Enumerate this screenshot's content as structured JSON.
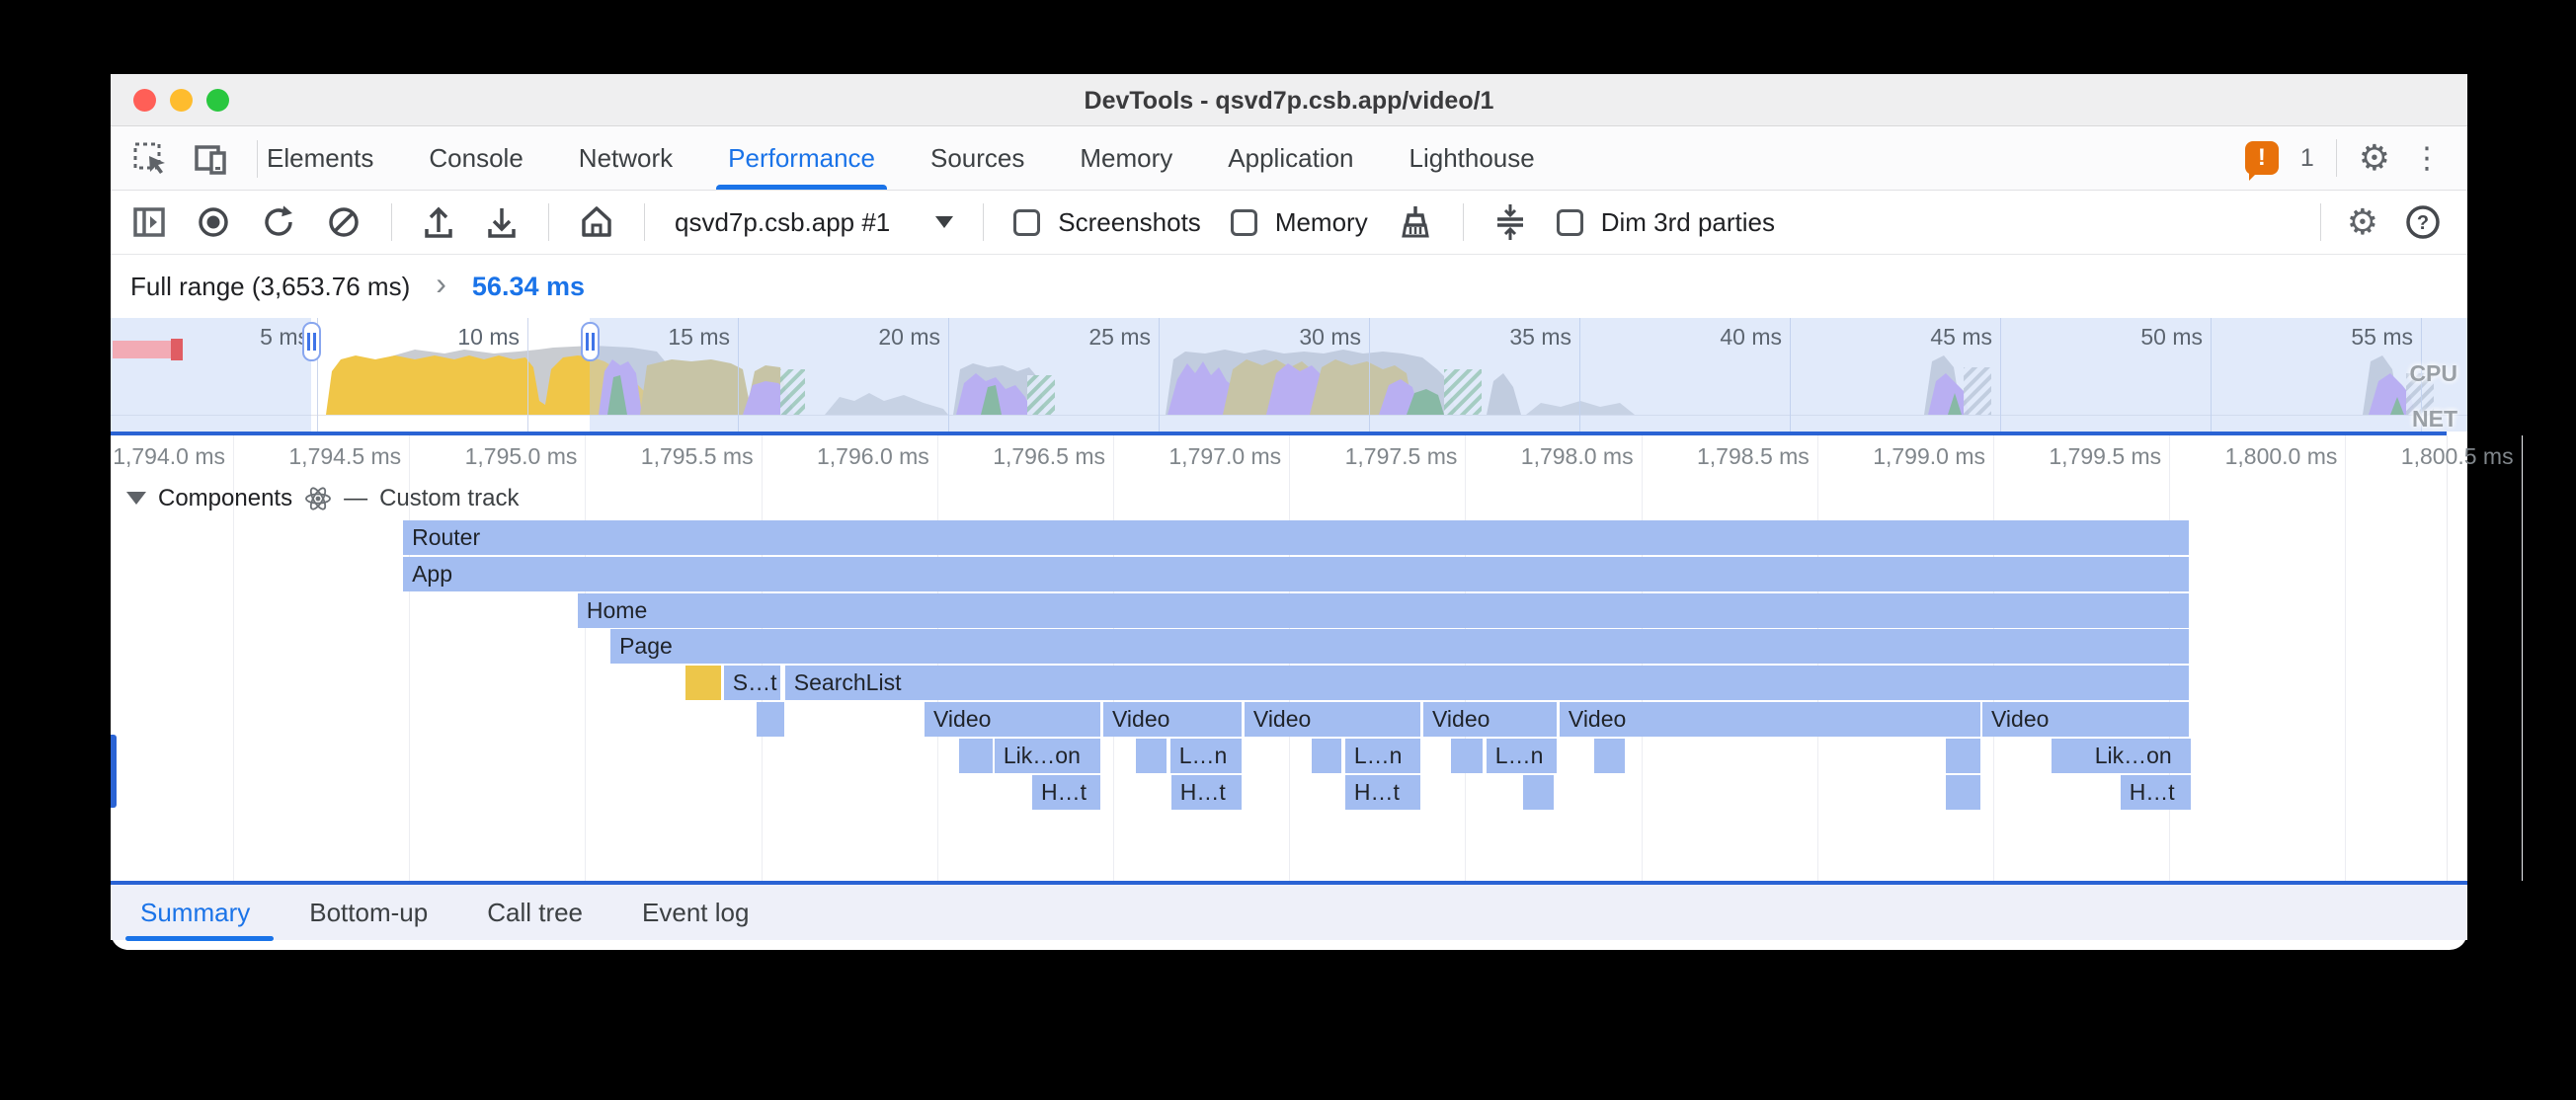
{
  "window": {
    "title": "DevTools - qsvd7p.csb.app/video/1"
  },
  "main_tabs": {
    "items": [
      "Elements",
      "Console",
      "Network",
      "Performance",
      "Sources",
      "Memory",
      "Application",
      "Lighthouse"
    ],
    "selected": "Performance",
    "issue_count": "1"
  },
  "toolbar": {
    "target_selector": "qsvd7p.csb.app #1",
    "screenshots_label": "Screenshots",
    "memory_label": "Memory",
    "dim_label": "Dim 3rd parties"
  },
  "breadcrumb": {
    "full_range": "Full range (3,653.76 ms)",
    "chevron": "›",
    "selection": "56.34 ms"
  },
  "minimap": {
    "ticks": [
      {
        "ms": 5,
        "label": "5 ms"
      },
      {
        "ms": 10,
        "label": "10 ms"
      },
      {
        "ms": 15,
        "label": "15 ms"
      },
      {
        "ms": 20,
        "label": "20 ms"
      },
      {
        "ms": 25,
        "label": "25 ms"
      },
      {
        "ms": 30,
        "label": "30 ms"
      },
      {
        "ms": 35,
        "label": "35 ms"
      },
      {
        "ms": 40,
        "label": "40 ms"
      },
      {
        "ms": 45,
        "label": "45 ms"
      },
      {
        "ms": 50,
        "label": "50 ms"
      },
      {
        "ms": 55,
        "label": "55 ms"
      }
    ],
    "cpu_label": "CPU",
    "net_label": "NET"
  },
  "detail_ruler": {
    "labels": [
      {
        "ms": 1794.0,
        "label": "1,794.0 ms"
      },
      {
        "ms": 1794.5,
        "label": "1,794.5 ms"
      },
      {
        "ms": 1795.0,
        "label": "1,795.0 ms"
      },
      {
        "ms": 1795.5,
        "label": "1,795.5 ms"
      },
      {
        "ms": 1796.0,
        "label": "1,796.0 ms"
      },
      {
        "ms": 1796.5,
        "label": "1,796.5 ms"
      },
      {
        "ms": 1797.0,
        "label": "1,797.0 ms"
      },
      {
        "ms": 1797.5,
        "label": "1,797.5 ms"
      },
      {
        "ms": 1798.0,
        "label": "1,798.0 ms"
      },
      {
        "ms": 1798.5,
        "label": "1,798.5 ms"
      },
      {
        "ms": 1799.0,
        "label": "1,799.0 ms"
      },
      {
        "ms": 1799.5,
        "label": "1,799.5 ms"
      },
      {
        "ms": 1800.0,
        "label": "1,800.0 ms"
      },
      {
        "ms": 1800.5,
        "label": "1,800.5 ms"
      }
    ]
  },
  "components_track": {
    "title": "Components",
    "separator": "—",
    "subtitle": "Custom track"
  },
  "flame": {
    "rows": [
      [
        {
          "l": "Router",
          "s": 1794.483,
          "e": 1799.556
        }
      ],
      [
        {
          "l": "App",
          "s": 1794.483,
          "e": 1799.556
        }
      ],
      [
        {
          "l": "Home",
          "s": 1794.979,
          "e": 1799.556
        }
      ],
      [
        {
          "l": "Page",
          "s": 1795.072,
          "e": 1799.556
        }
      ],
      [
        {
          "l": "",
          "s": 1795.285,
          "e": 1795.386,
          "c": "yellow"
        },
        {
          "l": "S…t",
          "s": 1795.394,
          "e": 1795.554
        },
        {
          "l": "SearchList",
          "s": 1795.568,
          "e": 1799.556
        }
      ],
      [
        {
          "l": "",
          "s": 1795.487,
          "e": 1795.565
        },
        {
          "l": "Video",
          "s": 1795.964,
          "e": 1796.463
        },
        {
          "l": "Video",
          "s": 1796.472,
          "e": 1796.864
        },
        {
          "l": "Video",
          "s": 1796.873,
          "e": 1797.372
        },
        {
          "l": "Video",
          "s": 1797.381,
          "e": 1797.76
        },
        {
          "l": "Video",
          "s": 1797.768,
          "e": 1798.963
        },
        {
          "l": "Video",
          "s": 1798.969,
          "e": 1799.556
        }
      ],
      [
        {
          "l": "",
          "s": 1796.062,
          "e": 1796.158
        },
        {
          "l": "Lik…on",
          "s": 1796.163,
          "e": 1796.463
        },
        {
          "l": "",
          "s": 1796.564,
          "e": 1796.651
        },
        {
          "l": "L…n",
          "s": 1796.662,
          "e": 1796.864
        },
        {
          "l": "",
          "s": 1797.064,
          "e": 1797.148
        },
        {
          "l": "L…n",
          "s": 1797.159,
          "e": 1797.372
        },
        {
          "l": "",
          "s": 1797.459,
          "e": 1797.549
        },
        {
          "l": "L…n",
          "s": 1797.56,
          "e": 1797.76
        },
        {
          "l": "",
          "s": 1797.866,
          "e": 1797.953
        },
        {
          "l": "",
          "s": 1798.865,
          "e": 1798.963
        },
        {
          "l": "",
          "s": 1799.165,
          "e": 1799.263
        },
        {
          "l": "Lik…on",
          "s": 1799.263,
          "e": 1799.561
        }
      ],
      [
        {
          "l": "H…t",
          "s": 1796.27,
          "e": 1796.463
        },
        {
          "l": "H…t",
          "s": 1796.665,
          "e": 1796.864
        },
        {
          "l": "H…t",
          "s": 1797.159,
          "e": 1797.372
        },
        {
          "l": "",
          "s": 1797.664,
          "e": 1797.751
        },
        {
          "l": "",
          "s": 1798.865,
          "e": 1798.963
        },
        {
          "l": "H…t",
          "s": 1799.361,
          "e": 1799.561
        }
      ]
    ]
  },
  "bottom_tabs": {
    "items": [
      "Summary",
      "Bottom-up",
      "Call tree",
      "Event log"
    ],
    "selected": "Summary"
  },
  "colors": {
    "accent": "#1a73e8",
    "bar_blue": "#a3bdf1",
    "bar_yellow": "#edc64a",
    "badge_orange": "#e8710a"
  }
}
